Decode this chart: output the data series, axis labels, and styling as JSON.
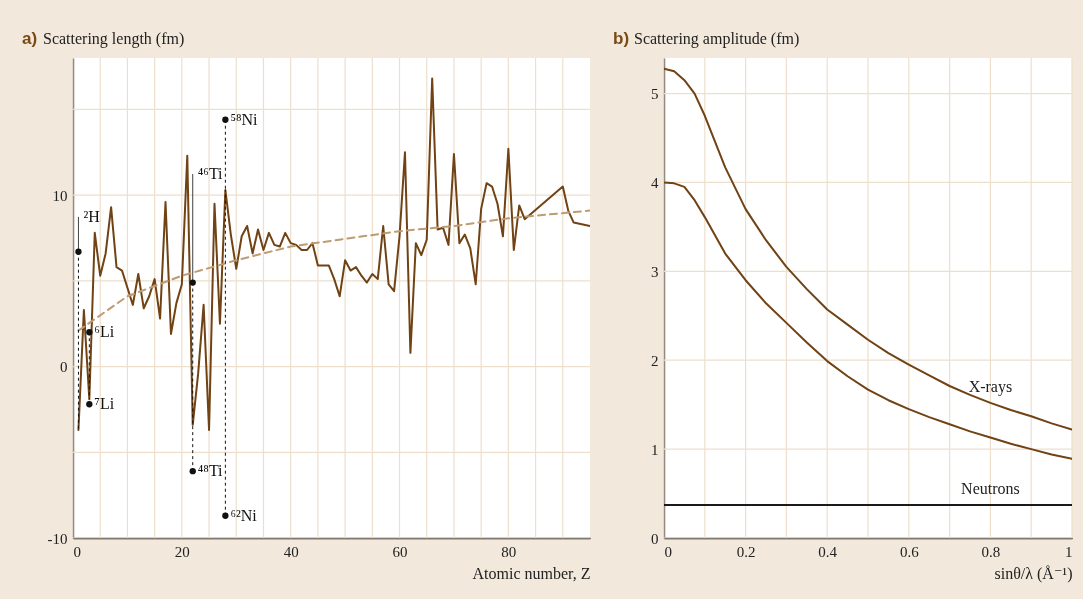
{
  "chart_data": [
    {
      "type": "line",
      "title": "a)",
      "ylabel": "Scattering length (fm)",
      "xlabel": "Atomic number, Z",
      "xlim": [
        0,
        95
      ],
      "ylim": [
        -10,
        18
      ],
      "xticks": [
        0,
        {
          "value": 5,
          "label": null
        },
        {
          "value": 10,
          "label": null
        },
        {
          "value": 15,
          "label": null
        },
        20,
        {
          "value": 25,
          "label": null
        },
        {
          "value": 30,
          "label": null
        },
        {
          "value": 35,
          "label": null
        },
        40,
        {
          "value": 45,
          "label": null
        },
        {
          "value": 50,
          "label": null
        },
        {
          "value": 55,
          "label": null
        },
        60,
        {
          "value": 65,
          "label": null
        },
        {
          "value": 70,
          "label": null
        },
        {
          "value": 75,
          "label": null
        },
        80,
        {
          "value": 85,
          "label": null
        },
        {
          "value": 90,
          "label": null
        }
      ],
      "yticks": [
        -10,
        {
          "value": -5,
          "label": null
        },
        0,
        {
          "value": 5,
          "label": null
        },
        10,
        {
          "value": 15,
          "label": null
        }
      ],
      "grid": true,
      "series": [
        {
          "color": "#704214",
          "x": [
            1,
            2,
            3,
            4,
            5,
            6,
            7,
            8,
            9,
            10,
            11,
            12,
            13,
            14,
            15,
            16,
            17,
            18,
            19,
            20,
            21,
            22,
            23,
            24,
            25,
            26,
            27,
            28,
            29,
            30,
            31,
            32,
            33,
            34,
            35,
            36,
            37,
            38,
            39,
            40,
            41,
            42,
            43,
            44,
            45,
            46,
            47,
            48,
            49,
            50,
            51,
            52,
            53,
            54,
            55,
            56,
            57,
            58,
            59,
            60,
            61,
            62,
            63,
            64,
            65,
            66,
            67,
            68,
            69,
            70,
            71,
            72,
            73,
            74,
            75,
            76,
            77,
            78,
            79,
            80,
            81,
            82,
            83,
            90,
            91,
            92,
            95
          ],
          "values": [
            -3.7,
            3.3,
            -1.9,
            7.8,
            5.3,
            6.6,
            9.3,
            5.8,
            5.6,
            4.6,
            3.6,
            5.4,
            3.4,
            4.1,
            5.1,
            2.8,
            9.6,
            1.9,
            3.7,
            4.8,
            12.3,
            -3.4,
            -0.4,
            3.6,
            -3.7,
            9.5,
            2.5,
            10.3,
            7.7,
            5.7,
            7.6,
            8.2,
            6.6,
            8.0,
            6.8,
            7.8,
            7.1,
            7.0,
            7.8,
            7.2,
            7.1,
            6.8,
            6.8,
            7.2,
            5.9,
            5.9,
            5.9,
            5.1,
            4.1,
            6.2,
            5.6,
            5.8,
            5.3,
            4.9,
            5.4,
            5.1,
            8.2,
            4.8,
            4.4,
            7.6,
            12.5,
            0.8,
            7.2,
            6.5,
            7.4,
            16.8,
            8.0,
            8.1,
            7.1,
            12.4,
            7.2,
            7.7,
            6.9,
            4.8,
            9.2,
            10.7,
            10.5,
            9.5,
            7.6,
            12.7,
            6.8,
            9.4,
            8.6,
            10.5,
            9.1,
            8.4,
            8.2
          ]
        },
        {
          "color": "#bf9b72",
          "line_style": "dashed",
          "x": [
            1,
            10,
            20,
            30,
            40,
            50,
            60,
            70,
            80,
            95
          ],
          "values": [
            2.1,
            4.1,
            5.3,
            6.2,
            7.0,
            7.45,
            7.9,
            8.2,
            8.65,
            9.1
          ]
        },
        {
          "type": "scatter",
          "marker": "circle",
          "color": "#111111",
          "x": [
            1,
            3,
            3,
            22,
            22,
            28,
            28
          ],
          "values": [
            6.7,
            2.0,
            -2.2,
            4.9,
            -6.1,
            14.4,
            -8.7
          ]
        }
      ],
      "annotations": [
        {
          "text": "²H",
          "x": 1,
          "y": 6.7
        },
        {
          "text": "⁶Li",
          "x": 3,
          "y": 2.0
        },
        {
          "text": "⁷Li",
          "x": 3,
          "y": -2.2
        },
        {
          "text": "⁴⁶Ti",
          "x": 22,
          "y": 4.9
        },
        {
          "text": "⁴⁸Ti",
          "x": 22,
          "y": -6.1
        },
        {
          "text": "⁵⁸Ni",
          "x": 28,
          "y": 14.4
        },
        {
          "text": "⁶²Ni",
          "x": 28,
          "y": -8.7
        }
      ]
    },
    {
      "type": "line",
      "title": "b)",
      "ylabel": "Scattering amplitude (fm)",
      "xlabel": "sinθ/λ (Å⁻¹)",
      "xlim": [
        0,
        1
      ],
      "ylim": [
        0,
        5.4
      ],
      "xticks": [
        0,
        {
          "value": 0.1,
          "label": null
        },
        0.2,
        {
          "value": 0.3,
          "label": null
        },
        0.4,
        {
          "value": 0.5,
          "label": null
        },
        0.6,
        {
          "value": 0.7,
          "label": null
        },
        0.8,
        {
          "value": 0.9,
          "label": null
        },
        1
      ],
      "yticks": [
        0,
        1,
        2,
        3,
        4,
        5
      ],
      "grid": true,
      "x": [
        0,
        0.025,
        0.05,
        0.075,
        0.1,
        0.15,
        0.2,
        0.25,
        0.3,
        0.35,
        0.4,
        0.45,
        0.5,
        0.55,
        0.6,
        0.65,
        0.7,
        0.75,
        0.8,
        0.85,
        0.9,
        0.95,
        1
      ],
      "series": [
        {
          "name": "X-rays",
          "color": "#704214",
          "values": [
            5.28,
            5.25,
            5.15,
            5.0,
            4.75,
            4.17,
            3.7,
            3.35,
            3.05,
            2.8,
            2.57,
            2.4,
            2.23,
            2.08,
            1.95,
            1.83,
            1.71,
            1.61,
            1.52,
            1.44,
            1.37,
            1.29,
            1.22
          ]
        },
        {
          "color": "#704214",
          "values": [
            4.0,
            3.99,
            3.95,
            3.8,
            3.61,
            3.2,
            2.9,
            2.64,
            2.42,
            2.2,
            1.99,
            1.82,
            1.67,
            1.55,
            1.45,
            1.36,
            1.28,
            1.2,
            1.13,
            1.06,
            1.0,
            0.94,
            0.89
          ]
        },
        {
          "name": "Neutrons",
          "color": "#1a1a1a",
          "x": [
            0,
            1
          ],
          "values": [
            0.37,
            0.37
          ]
        }
      ]
    }
  ]
}
